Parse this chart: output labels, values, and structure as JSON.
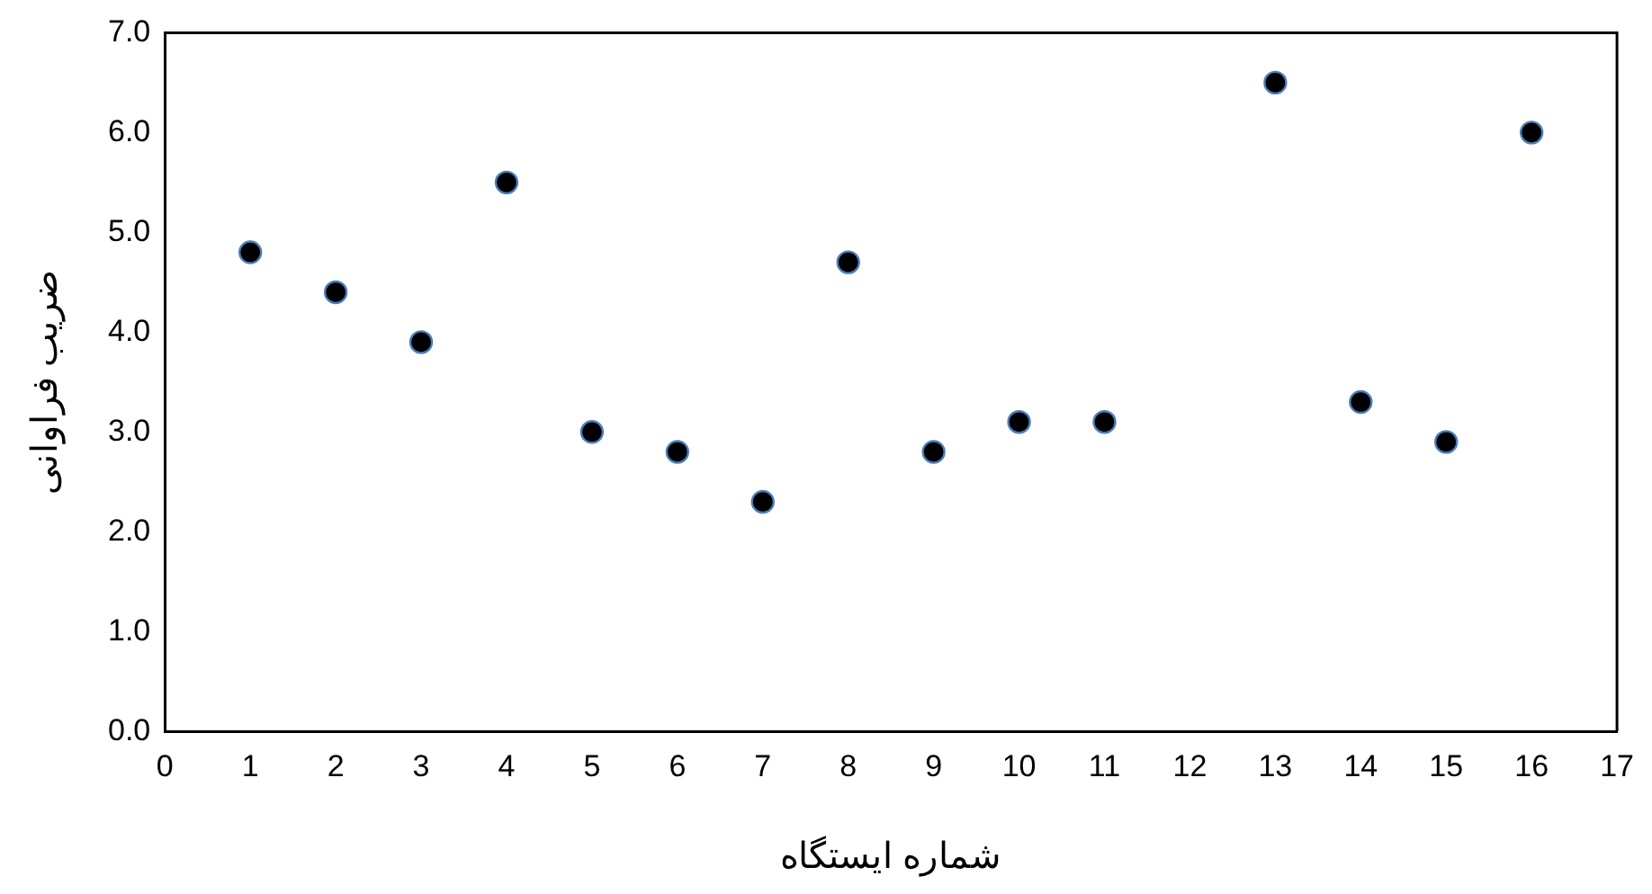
{
  "chart_data": {
    "type": "scatter",
    "xlabel": "شماره ایستگاه",
    "ylabel": "ضریب فراوانی",
    "x": [
      1,
      2,
      3,
      4,
      5,
      6,
      7,
      8,
      9,
      10,
      11,
      13,
      14,
      15,
      16
    ],
    "series": [
      {
        "color": "#000000",
        "values": [
          4.8,
          4.4,
          3.9,
          5.5,
          3.0,
          2.8,
          2.3,
          4.7,
          2.8,
          3.1,
          3.1,
          6.5,
          3.3,
          2.9,
          6.0
        ]
      }
    ],
    "xlim": [
      0,
      17
    ],
    "xticks": [
      0,
      1,
      2,
      3,
      4,
      5,
      6,
      7,
      8,
      9,
      10,
      11,
      12,
      13,
      14,
      15,
      16,
      17
    ],
    "ylim": [
      0,
      7
    ],
    "yticks": [
      {
        "value": 0,
        "label": "0.0"
      },
      {
        "value": 1,
        "label": "1.0"
      },
      {
        "value": 2,
        "label": "2.0"
      },
      {
        "value": 3,
        "label": "3.0"
      },
      {
        "value": 4,
        "label": "4.0"
      },
      {
        "value": 5,
        "label": "5.0"
      },
      {
        "value": 6,
        "label": "6.0"
      },
      {
        "value": 7,
        "label": "7.0"
      }
    ],
    "grid": false,
    "legend": false,
    "marker": "circle"
  }
}
